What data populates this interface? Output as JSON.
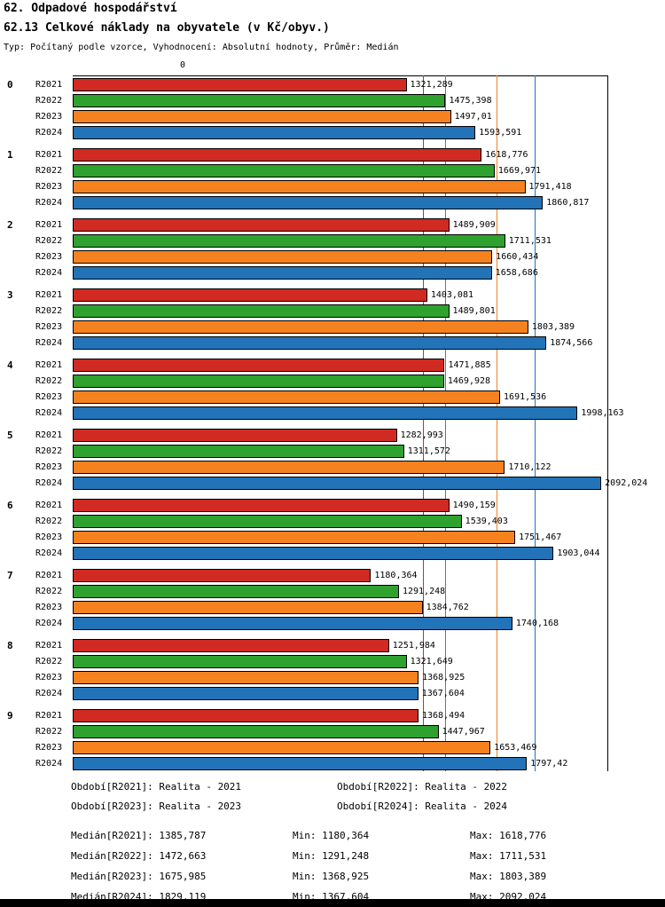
{
  "title": "62. Odpadové hospodářství",
  "subtitle": "62.13 Celkové náklady na obyvatele (v Kč/obyv.)",
  "meta": "Typ: Počítaný podle vzorce, Vyhodnocení: Absolutní hodnoty, Průměr: Medián",
  "chart_data": {
    "type": "bar",
    "orientation": "horizontal",
    "title": "62.13 Celkové náklady na obyvatele (v Kč/obyv.)",
    "axis_zero_label": "0",
    "xlim": [
      0,
      2116
    ],
    "series": [
      "R2021",
      "R2022",
      "R2023",
      "R2024"
    ],
    "colors": {
      "R2021": "#d02a23",
      "R2022": "#2ea12e",
      "R2023": "#f5821f",
      "R2024": "#2273b8"
    },
    "medians": {
      "R2021": 1385.787,
      "R2022": 1472.663,
      "R2023": 1675.985,
      "R2024": 1829.119
    },
    "groups": [
      {
        "label": "0",
        "bars": [
          {
            "series": "R2021",
            "value": 1321.289,
            "display": "1321,289"
          },
          {
            "series": "R2022",
            "value": 1475.398,
            "display": "1475,398"
          },
          {
            "series": "R2023",
            "value": 1497.01,
            "display": "1497,01"
          },
          {
            "series": "R2024",
            "value": 1593.591,
            "display": "1593,591"
          }
        ]
      },
      {
        "label": "1",
        "bars": [
          {
            "series": "R2021",
            "value": 1618.776,
            "display": "1618,776"
          },
          {
            "series": "R2022",
            "value": 1669.971,
            "display": "1669,971"
          },
          {
            "series": "R2023",
            "value": 1791.418,
            "display": "1791,418"
          },
          {
            "series": "R2024",
            "value": 1860.817,
            "display": "1860,817"
          }
        ]
      },
      {
        "label": "2",
        "bars": [
          {
            "series": "R2021",
            "value": 1489.909,
            "display": "1489,909"
          },
          {
            "series": "R2022",
            "value": 1711.531,
            "display": "1711,531"
          },
          {
            "series": "R2023",
            "value": 1660.434,
            "display": "1660,434"
          },
          {
            "series": "R2024",
            "value": 1658.686,
            "display": "1658,686"
          }
        ]
      },
      {
        "label": "3",
        "bars": [
          {
            "series": "R2021",
            "value": 1403.081,
            "display": "1403,081"
          },
          {
            "series": "R2022",
            "value": 1489.801,
            "display": "1489,801"
          },
          {
            "series": "R2023",
            "value": 1803.389,
            "display": "1803,389"
          },
          {
            "series": "R2024",
            "value": 1874.566,
            "display": "1874,566"
          }
        ]
      },
      {
        "label": "4",
        "bars": [
          {
            "series": "R2021",
            "value": 1471.885,
            "display": "1471,885"
          },
          {
            "series": "R2022",
            "value": 1469.928,
            "display": "1469,928"
          },
          {
            "series": "R2023",
            "value": 1691.536,
            "display": "1691,536"
          },
          {
            "series": "R2024",
            "value": 1998.163,
            "display": "1998,163"
          }
        ]
      },
      {
        "label": "5",
        "bars": [
          {
            "series": "R2021",
            "value": 1282.993,
            "display": "1282,993"
          },
          {
            "series": "R2022",
            "value": 1311.572,
            "display": "1311,572"
          },
          {
            "series": "R2023",
            "value": 1710.122,
            "display": "1710,122"
          },
          {
            "series": "R2024",
            "value": 2092.024,
            "display": "2092,024"
          }
        ]
      },
      {
        "label": "6",
        "bars": [
          {
            "series": "R2021",
            "value": 1490.159,
            "display": "1490,159"
          },
          {
            "series": "R2022",
            "value": 1539.403,
            "display": "1539,403"
          },
          {
            "series": "R2023",
            "value": 1751.467,
            "display": "1751,467"
          },
          {
            "series": "R2024",
            "value": 1903.044,
            "display": "1903,044"
          }
        ]
      },
      {
        "label": "7",
        "bars": [
          {
            "series": "R2021",
            "value": 1180.364,
            "display": "1180,364"
          },
          {
            "series": "R2022",
            "value": 1291.248,
            "display": "1291,248"
          },
          {
            "series": "R2023",
            "value": 1384.762,
            "display": "1384,762"
          },
          {
            "series": "R2024",
            "value": 1740.168,
            "display": "1740,168"
          }
        ]
      },
      {
        "label": "8",
        "bars": [
          {
            "series": "R2021",
            "value": 1251.984,
            "display": "1251,984"
          },
          {
            "series": "R2022",
            "value": 1321.649,
            "display": "1321,649"
          },
          {
            "series": "R2023",
            "value": 1368.925,
            "display": "1368,925"
          },
          {
            "series": "R2024",
            "value": 1367.604,
            "display": "1367,604"
          }
        ]
      },
      {
        "label": "9",
        "bars": [
          {
            "series": "R2021",
            "value": 1368.494,
            "display": "1368,494"
          },
          {
            "series": "R2022",
            "value": 1447.967,
            "display": "1447,967"
          },
          {
            "series": "R2023",
            "value": 1653.469,
            "display": "1653,469"
          },
          {
            "series": "R2024",
            "value": 1797.42,
            "display": "1797,42"
          }
        ]
      }
    ]
  },
  "legend": {
    "items": [
      {
        "label": "Období[R2021]: Realita - 2021"
      },
      {
        "label": "Období[R2022]: Realita - 2022"
      },
      {
        "label": "Období[R2023]: Realita - 2023"
      },
      {
        "label": "Období[R2024]: Realita - 2024"
      }
    ]
  },
  "stats": {
    "rows": [
      {
        "median": "Medián[R2021]: 1385,787",
        "min": "Min: 1180,364",
        "max": "Max: 1618,776"
      },
      {
        "median": "Medián[R2022]: 1472,663",
        "min": "Min: 1291,248",
        "max": "Max: 1711,531"
      },
      {
        "median": "Medián[R2023]: 1675,985",
        "min": "Min: 1368,925",
        "max": "Max: 1803,389"
      },
      {
        "median": "Medián[R2024]: 1829,119",
        "min": "Min: 1367,604",
        "max": "Max: 2092,024"
      }
    ]
  }
}
